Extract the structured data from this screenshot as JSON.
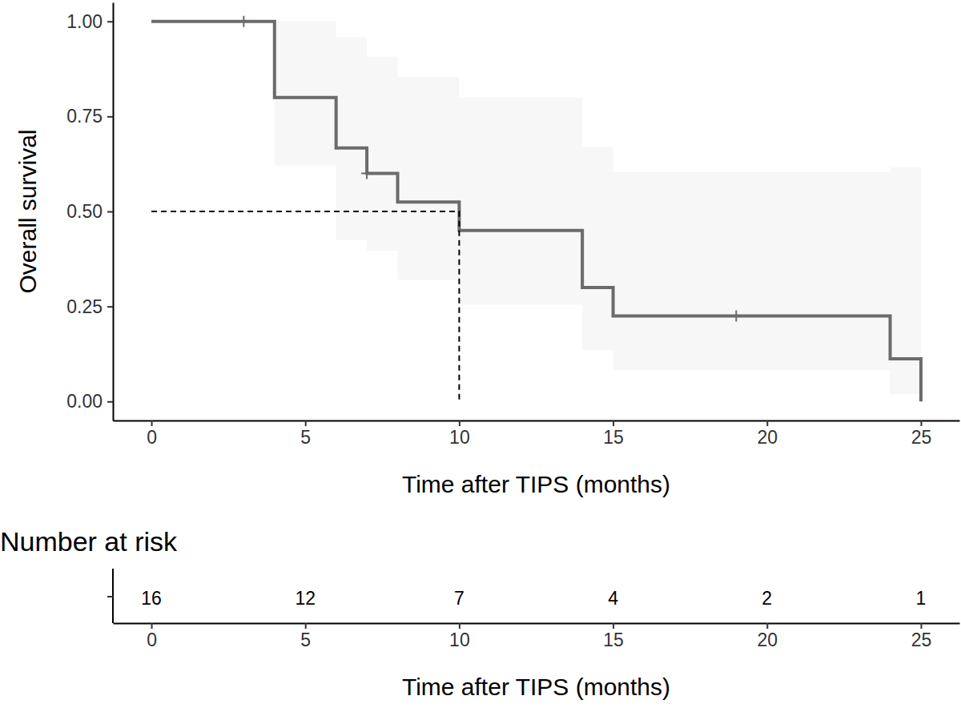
{
  "chart_data": [
    {
      "type": "step",
      "x_label": "Time after TIPS (months)",
      "y_label": "Overall survival",
      "xlim": [
        -1.25,
        26.25
      ],
      "ylim": [
        -0.05,
        1.05
      ],
      "xticks": [
        0,
        5,
        10,
        15,
        20,
        25
      ],
      "yticks": [
        {
          "value": 0,
          "label": "0.00"
        },
        {
          "value": 0.25,
          "label": "0.25"
        },
        {
          "value": 0.5,
          "label": "0.50"
        },
        {
          "value": 0.75,
          "label": "0.75"
        },
        {
          "value": 1,
          "label": "1.00"
        }
      ],
      "series": [
        {
          "type": "step",
          "color": "#6b6b6b",
          "x": [
            0,
            4,
            6,
            7,
            8,
            10,
            14,
            15,
            24,
            25
          ],
          "values": [
            1,
            0.8,
            0.667,
            0.6,
            0.525,
            0.45,
            0.3,
            0.225,
            0.1125,
            0
          ],
          "lower": [
            1,
            0.62,
            0.424,
            0.397,
            0.32,
            0.255,
            0.135,
            0.082,
            0.019,
            0
          ],
          "upper": [
            1,
            1,
            0.958,
            0.907,
            0.854,
            0.8,
            0.67,
            0.603,
            0.616,
            0
          ]
        },
        {
          "type": "scatter",
          "marker": "plus",
          "color": "#6b6b6b",
          "x": [
            3,
            7,
            19
          ],
          "values": [
            1,
            0.6,
            0.225
          ]
        },
        {
          "type": "line",
          "line_style": "dashed",
          "color": "#000000",
          "x": [
            0,
            10,
            10
          ],
          "values": [
            0.5,
            0.5,
            0
          ]
        }
      ]
    },
    {
      "type": "table",
      "title": "Number at risk",
      "x_label": "Time after TIPS (months)",
      "xlim": [
        -1.25,
        26.25
      ],
      "xticks": [
        0,
        5,
        10,
        15,
        20,
        25
      ],
      "x": [
        0,
        5,
        10,
        15,
        20,
        25
      ],
      "values": [
        16,
        12,
        7,
        4,
        2,
        1
      ]
    }
  ]
}
